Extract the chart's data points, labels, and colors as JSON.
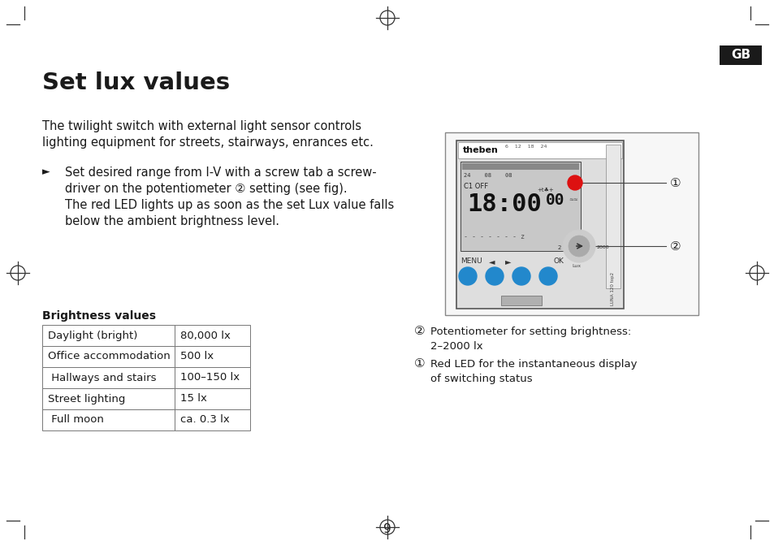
{
  "title": "Set lux values",
  "gb_label": "GB",
  "intro_text_line1": "The twilight switch with external light sensor controls",
  "intro_text_line2": "lighting equipment for streets, stairways, enrances etc.",
  "bullet_arrow": "►",
  "bullet_text_line1": "Set desired range from I-V with a screw tab a screw-",
  "bullet_text_line2": "driver on the potentiometer ② setting (see fig).",
  "bullet_text_line3": "The red LED lights up as soon as the set Lux value falls",
  "bullet_text_line4": "below the ambient brightness level.",
  "table_title": "Brightness values",
  "table_rows": [
    [
      "Daylight (bright)",
      "80,000 lx"
    ],
    [
      "Office accommodation",
      "500 lx"
    ],
    [
      " Hallways and stairs",
      "100–150 lx"
    ],
    [
      "Street lighting",
      "15 lx"
    ],
    [
      " Full moon",
      "ca. 0.3 lx"
    ]
  ],
  "note1_circle": "②",
  "note1_text_line1": "Potentiometer for setting brightness:",
  "note1_text_line2": "2–2000 lx",
  "note2_circle": "①",
  "note2_text_line1": "Red LED for the instantaneous display",
  "note2_text_line2": "of switching status",
  "page_number": "9",
  "bg_color": "#ffffff",
  "text_color": "#1a1a1a",
  "table_border_color": "#777777",
  "table_bg_color": "#ffffff",
  "gb_bg_color": "#1a1a1a",
  "gb_text_color": "#ffffff",
  "crosshair_color": "#333333",
  "corner_mark_color": "#333333",
  "device_outer_bg": "#f0f0f0",
  "device_inner_bg": "#e0e0e0",
  "display_bg": "#c0c0c0",
  "red_led_color": "#dd1111",
  "blue_btn_color": "#2288cc"
}
